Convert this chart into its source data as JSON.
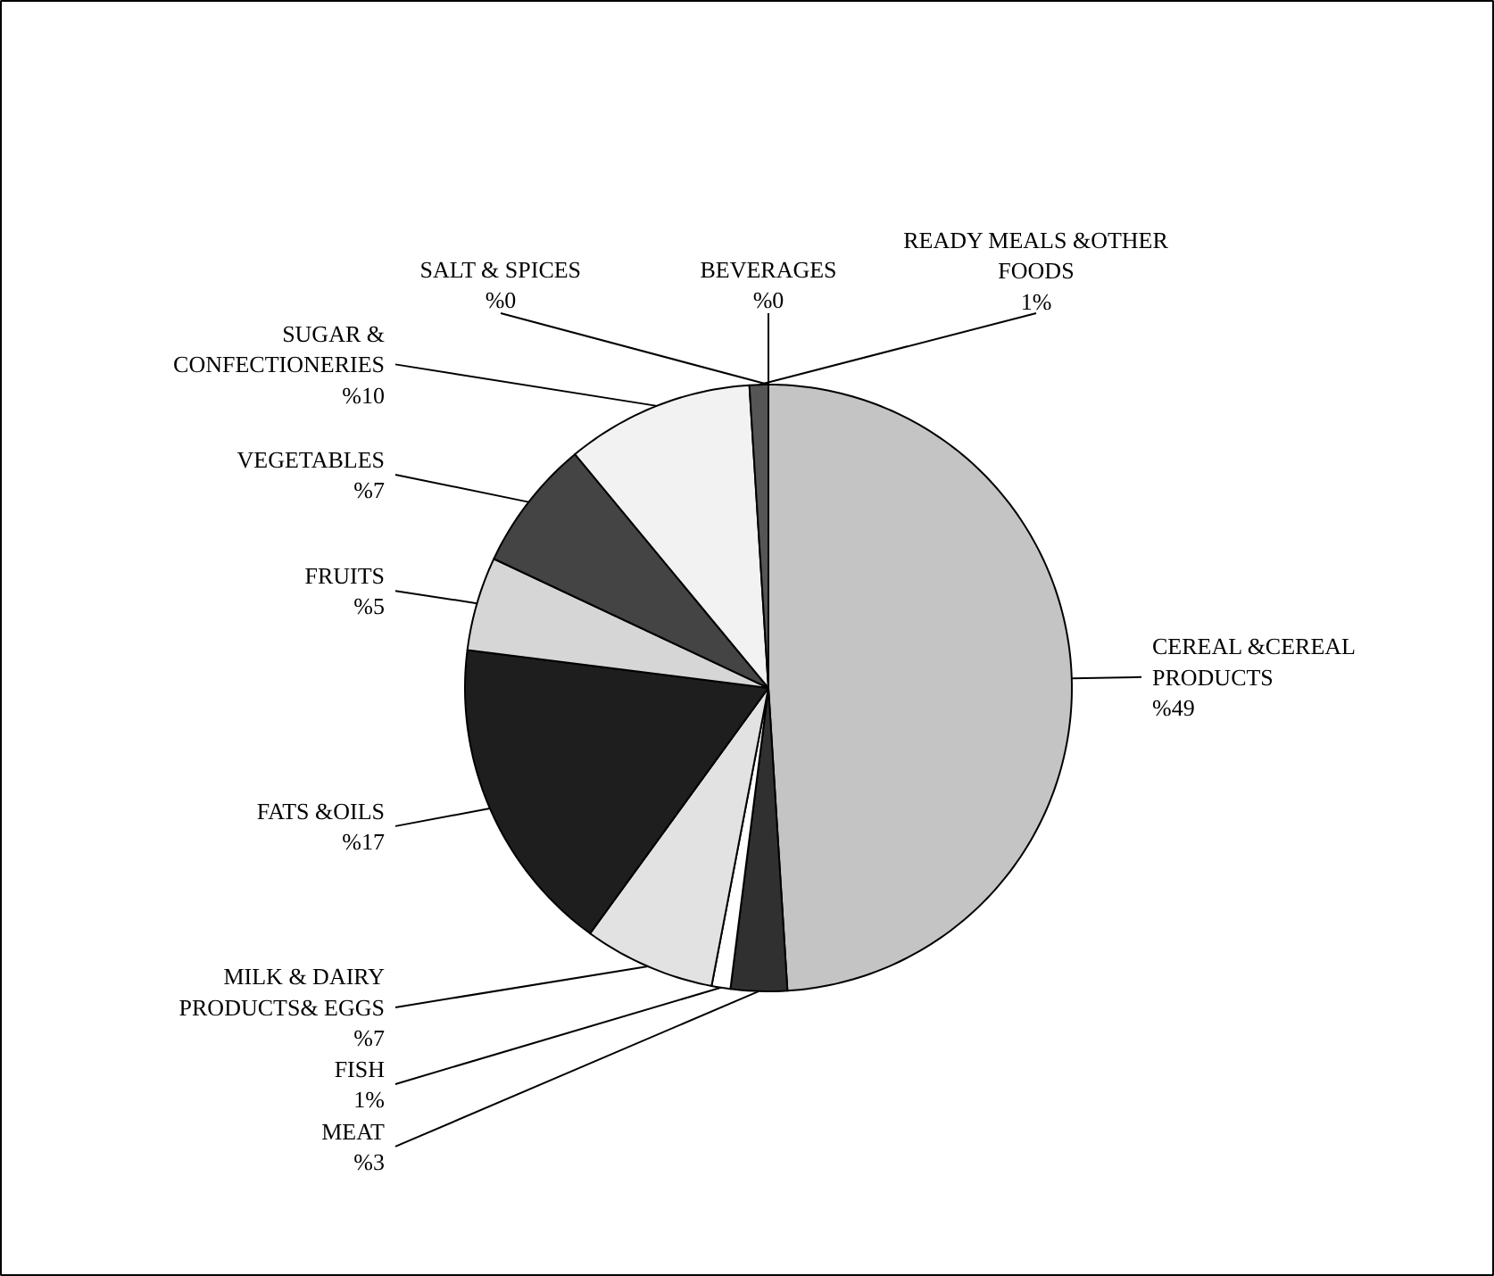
{
  "chart_data": {
    "type": "pie",
    "categories": [
      "CEREAL &CEREAL PRODUCTS",
      "MEAT",
      "FISH",
      "MILK & DAIRY PRODUCTS& EGGS",
      "FATS &OILS",
      "FRUITS",
      "VEGETABLES",
      "SUGAR & CONFECTIONERIES",
      "READY MEALS &OTHER FOODS",
      "SALT & SPICES",
      "BEVERAGES"
    ],
    "values": [
      49,
      3,
      1,
      7,
      17,
      5,
      7,
      10,
      1,
      0,
      0
    ],
    "value_labels": [
      "%49",
      "%3",
      "1%",
      "%7",
      "%17",
      "%5",
      "%7",
      "%10",
      "1%",
      "%0",
      "%0"
    ],
    "colors": [
      "#c4c4c4",
      "#303030",
      "#ffffff",
      "#e2e2e2",
      "#1e1e1e",
      "#d6d6d6",
      "#444444",
      "#f2f2f2",
      "#555555",
      "#888888",
      "#ffffff"
    ]
  }
}
